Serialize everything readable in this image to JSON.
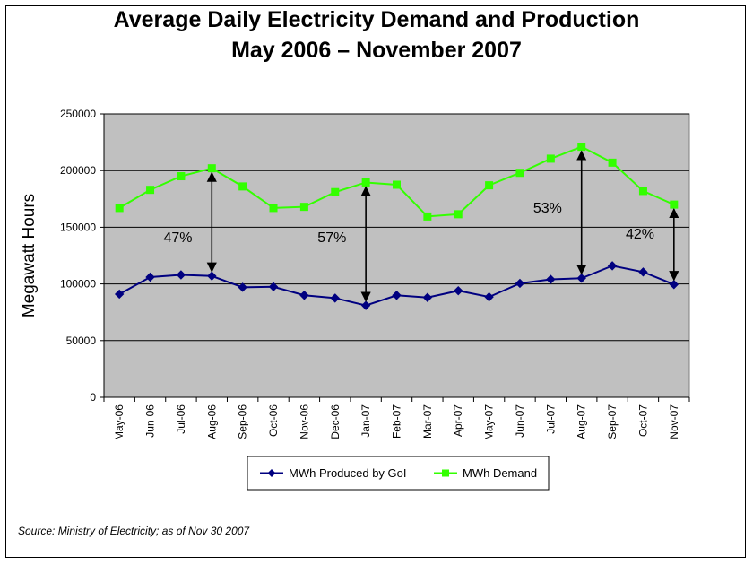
{
  "chart_data": {
    "type": "line",
    "title": "Average Daily Electricity Demand and Production",
    "subtitle": "May 2006 – November 2007",
    "xlabel": "",
    "ylabel": "Megawatt Hours",
    "ylim": [
      0,
      250000
    ],
    "yticks": [
      0,
      50000,
      100000,
      150000,
      200000,
      250000
    ],
    "grid": true,
    "legend": "bottom",
    "categories": [
      "May-06",
      "Jun-06",
      "Jul-06",
      "Aug-06",
      "Sep-06",
      "Oct-06",
      "Nov-06",
      "Dec-06",
      "Jan-07",
      "Feb-07",
      "Mar-07",
      "Apr-07",
      "May-07",
      "Jun-07",
      "Jul-07",
      "Aug-07",
      "Sep-07",
      "Oct-07",
      "Nov-07"
    ],
    "series": [
      {
        "name": "MWh Produced by GoI",
        "color": "#000080",
        "marker": "diamond",
        "values": [
          91000,
          106000,
          108000,
          107000,
          97000,
          97500,
          90000,
          87500,
          81000,
          90000,
          88000,
          94000,
          88500,
          100500,
          104000,
          105000,
          116000,
          110500,
          99500
        ]
      },
      {
        "name": "MWh Demand",
        "color": "#33ff00",
        "marker": "square",
        "values": [
          167000,
          183000,
          195000,
          202000,
          186000,
          167000,
          168000,
          181000,
          189500,
          187500,
          159500,
          161500,
          187000,
          198000,
          210500,
          221000,
          207000,
          182000,
          170000
        ]
      }
    ],
    "annotations": [
      {
        "text": "47%",
        "category_index": 3,
        "label_category": 1.9,
        "label_value": 137000
      },
      {
        "text": "57%",
        "category_index": 8,
        "label_category": 6.9,
        "label_value": 137000
      },
      {
        "text": "53%",
        "category_index": 15,
        "label_category": 13.9,
        "label_value": 163000
      },
      {
        "text": "42%",
        "category_index": 18,
        "label_category": 16.9,
        "label_value": 140000
      }
    ],
    "plot_background": "#c0c0c0"
  },
  "source": "Source:  Ministry of Electricity; as of Nov 30 2007"
}
